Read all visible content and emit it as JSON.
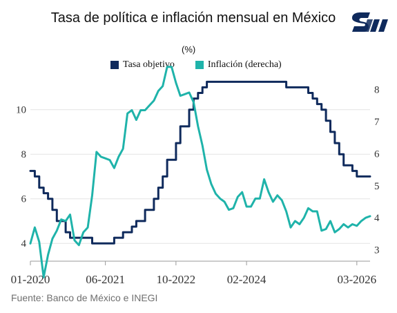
{
  "chart_data": {
    "type": "line",
    "title": "Tasa de política e inflación mensual en México",
    "unit": "(%)",
    "source": "Fuente: Banco de México e INEGI",
    "x_labels": [
      "01-2020",
      "06-2021",
      "10-2022",
      "02-2024",
      "03-2026"
    ],
    "y_left": {
      "ticks": [
        "4",
        "6",
        "8",
        "10"
      ],
      "range": [
        3.2,
        11.2
      ]
    },
    "y_right": {
      "ticks": [
        "3",
        "4",
        "5",
        "6",
        "7",
        "8"
      ],
      "range": [
        2.65,
        8.2
      ]
    },
    "colors": {
      "tasa": "#0f2a5c",
      "inflacion": "#1fb3aa"
    },
    "series": [
      {
        "name": "Tasa objetivo",
        "axis": "left",
        "values": [
          7.25,
          7.0,
          6.5,
          6.25,
          6.0,
          5.5,
          5.0,
          5.0,
          4.5,
          4.25,
          4.25,
          4.25,
          4.25,
          4.25,
          4.0,
          4.0,
          4.0,
          4.0,
          4.0,
          4.25,
          4.25,
          4.5,
          4.5,
          4.75,
          5.0,
          5.0,
          5.5,
          5.5,
          6.0,
          6.5,
          7.0,
          7.75,
          7.75,
          8.5,
          9.25,
          9.25,
          10.0,
          10.5,
          10.75,
          11.0,
          11.25,
          11.25,
          11.25,
          11.25,
          11.25,
          11.25,
          11.25,
          11.25,
          11.25,
          11.25,
          11.25,
          11.25,
          11.25,
          11.25,
          11.25,
          11.25,
          11.25,
          11.25,
          11.0,
          11.0,
          11.0,
          11.0,
          11.0,
          10.75,
          10.5,
          10.25,
          10.0,
          9.5,
          9.0,
          8.5,
          8.0,
          7.5,
          7.5,
          7.25,
          7.0,
          7.0,
          7.0,
          7.0
        ]
      },
      {
        "name": "Inflación (derecha)",
        "axis": "right",
        "values": [
          3.2,
          3.7,
          3.25,
          2.15,
          2.85,
          3.35,
          3.6,
          3.95,
          3.9,
          4.1,
          3.3,
          3.15,
          3.55,
          3.7,
          4.7,
          6.05,
          5.9,
          5.85,
          5.8,
          5.55,
          5.9,
          6.15,
          7.25,
          7.35,
          7.05,
          7.35,
          7.35,
          7.5,
          7.65,
          7.95,
          8.1,
          8.7,
          8.7,
          8.2,
          7.8,
          7.85,
          7.9,
          7.6,
          6.85,
          6.25,
          5.5,
          5.05,
          4.75,
          4.6,
          4.5,
          4.25,
          4.3,
          4.65,
          4.8,
          4.35,
          4.35,
          4.6,
          4.6,
          5.2,
          4.8,
          4.5,
          4.7,
          4.55,
          4.2,
          3.7,
          3.9,
          3.8,
          4.0,
          4.3,
          4.2,
          4.2,
          3.6,
          3.65,
          3.9,
          3.55,
          3.65,
          3.8,
          3.7,
          3.8,
          3.75,
          3.9,
          4.0,
          4.05
        ]
      }
    ],
    "legend_position": "top",
    "grid": "horizontal"
  },
  "logo": {
    "name": "banxico-logo-icon",
    "color": "#0f2a5c"
  }
}
